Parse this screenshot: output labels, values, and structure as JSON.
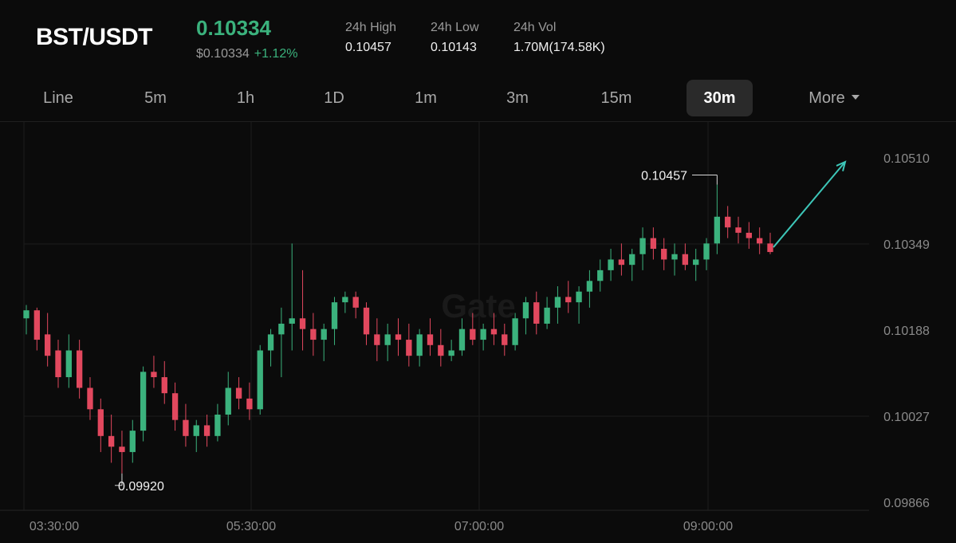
{
  "header": {
    "pair": "BST/USDT",
    "price": "0.10334",
    "usd_price": "$0.10334",
    "change": "+1.12%",
    "stats": [
      {
        "label": "24h High",
        "value": "0.10457"
      },
      {
        "label": "24h Low",
        "value": "0.10143"
      },
      {
        "label": "24h Vol",
        "value": "1.70M(174.58K)"
      }
    ]
  },
  "tabs": [
    "Line",
    "5m",
    "1h",
    "1D",
    "1m",
    "3m",
    "15m",
    "30m",
    "More"
  ],
  "active_tab": "30m",
  "watermark": "Gate",
  "colors": {
    "up": "#3bb27d",
    "down": "#e2485e",
    "text": "#e8e8e8",
    "muted": "#8a8a8a",
    "arrow": "#3dc6b8"
  },
  "chart_data": {
    "type": "candlestick",
    "y_ticks": [
      "0.10510",
      "0.10349",
      "0.10188",
      "0.10027",
      "0.09866"
    ],
    "ylim": [
      0.09866,
      0.1051
    ],
    "x_ticks": [
      "03:30:00",
      "05:30:00",
      "07:00:00",
      "09:00:00"
    ],
    "annotations": {
      "high": "0.10457",
      "low": "0.09920"
    },
    "trend": [
      {
        "o": 0.1021,
        "h": 0.10235,
        "l": 0.1018,
        "c": 0.10225
      },
      {
        "o": 0.10225,
        "h": 0.1023,
        "l": 0.1015,
        "c": 0.1017
      },
      {
        "o": 0.1018,
        "h": 0.1022,
        "l": 0.1012,
        "c": 0.1014
      },
      {
        "o": 0.1015,
        "h": 0.1017,
        "l": 0.1008,
        "c": 0.101
      },
      {
        "o": 0.101,
        "h": 0.1018,
        "l": 0.1008,
        "c": 0.1015
      },
      {
        "o": 0.1015,
        "h": 0.1017,
        "l": 0.1006,
        "c": 0.1008
      },
      {
        "o": 0.1008,
        "h": 0.101,
        "l": 0.1002,
        "c": 0.1004
      },
      {
        "o": 0.1004,
        "h": 0.1006,
        "l": 0.0996,
        "c": 0.0999
      },
      {
        "o": 0.0999,
        "h": 0.1003,
        "l": 0.0994,
        "c": 0.0997
      },
      {
        "o": 0.0997,
        "h": 0.1,
        "l": 0.0992,
        "c": 0.0996
      },
      {
        "o": 0.0996,
        "h": 0.1002,
        "l": 0.0994,
        "c": 0.1
      },
      {
        "o": 0.1,
        "h": 0.1012,
        "l": 0.0998,
        "c": 0.1011
      },
      {
        "o": 0.1011,
        "h": 0.1014,
        "l": 0.1008,
        "c": 0.101
      },
      {
        "o": 0.101,
        "h": 0.1013,
        "l": 0.1005,
        "c": 0.1007
      },
      {
        "o": 0.1007,
        "h": 0.1009,
        "l": 0.1,
        "c": 0.1002
      },
      {
        "o": 0.1002,
        "h": 0.1005,
        "l": 0.0997,
        "c": 0.0999
      },
      {
        "o": 0.0999,
        "h": 0.1002,
        "l": 0.0996,
        "c": 0.1001
      },
      {
        "o": 0.1001,
        "h": 0.1003,
        "l": 0.0997,
        "c": 0.0999
      },
      {
        "o": 0.0999,
        "h": 0.1005,
        "l": 0.0998,
        "c": 0.1003
      },
      {
        "o": 0.1003,
        "h": 0.1011,
        "l": 0.1001,
        "c": 0.1008
      },
      {
        "o": 0.1008,
        "h": 0.101,
        "l": 0.1004,
        "c": 0.1006
      },
      {
        "o": 0.1006,
        "h": 0.1009,
        "l": 0.1002,
        "c": 0.1004
      },
      {
        "o": 0.1004,
        "h": 0.1016,
        "l": 0.1003,
        "c": 0.1015
      },
      {
        "o": 0.1015,
        "h": 0.1019,
        "l": 0.1012,
        "c": 0.1018
      },
      {
        "o": 0.1018,
        "h": 0.1023,
        "l": 0.101,
        "c": 0.102
      },
      {
        "o": 0.102,
        "h": 0.1035,
        "l": 0.1015,
        "c": 0.1021
      },
      {
        "o": 0.1021,
        "h": 0.103,
        "l": 0.1015,
        "c": 0.1019
      },
      {
        "o": 0.1019,
        "h": 0.1022,
        "l": 0.1014,
        "c": 0.1017
      },
      {
        "o": 0.1017,
        "h": 0.102,
        "l": 0.1013,
        "c": 0.1019
      },
      {
        "o": 0.1019,
        "h": 0.1025,
        "l": 0.1016,
        "c": 0.1024
      },
      {
        "o": 0.1024,
        "h": 0.1026,
        "l": 0.1022,
        "c": 0.1025
      },
      {
        "o": 0.1025,
        "h": 0.1026,
        "l": 0.1021,
        "c": 0.1023
      },
      {
        "o": 0.1023,
        "h": 0.1024,
        "l": 0.1016,
        "c": 0.1018
      },
      {
        "o": 0.1018,
        "h": 0.1021,
        "l": 0.1013,
        "c": 0.1016
      },
      {
        "o": 0.1016,
        "h": 0.102,
        "l": 0.1013,
        "c": 0.1018
      },
      {
        "o": 0.1018,
        "h": 0.1021,
        "l": 0.1014,
        "c": 0.1017
      },
      {
        "o": 0.1017,
        "h": 0.102,
        "l": 0.1012,
        "c": 0.1014
      },
      {
        "o": 0.1014,
        "h": 0.1019,
        "l": 0.1012,
        "c": 0.1018
      },
      {
        "o": 0.1018,
        "h": 0.1021,
        "l": 0.1014,
        "c": 0.1016
      },
      {
        "o": 0.1016,
        "h": 0.1019,
        "l": 0.1012,
        "c": 0.1014
      },
      {
        "o": 0.1014,
        "h": 0.1017,
        "l": 0.1013,
        "c": 0.1015
      },
      {
        "o": 0.1015,
        "h": 0.1021,
        "l": 0.1014,
        "c": 0.1019
      },
      {
        "o": 0.1019,
        "h": 0.1022,
        "l": 0.1016,
        "c": 0.1017
      },
      {
        "o": 0.1017,
        "h": 0.102,
        "l": 0.1015,
        "c": 0.1019
      },
      {
        "o": 0.1019,
        "h": 0.1022,
        "l": 0.1016,
        "c": 0.1018
      },
      {
        "o": 0.1018,
        "h": 0.102,
        "l": 0.1014,
        "c": 0.1016
      },
      {
        "o": 0.1016,
        "h": 0.1022,
        "l": 0.1015,
        "c": 0.1021
      },
      {
        "o": 0.1021,
        "h": 0.1025,
        "l": 0.1018,
        "c": 0.1024
      },
      {
        "o": 0.1024,
        "h": 0.1026,
        "l": 0.1018,
        "c": 0.102
      },
      {
        "o": 0.102,
        "h": 0.1025,
        "l": 0.1019,
        "c": 0.1023
      },
      {
        "o": 0.1023,
        "h": 0.1027,
        "l": 0.102,
        "c": 0.1025
      },
      {
        "o": 0.1025,
        "h": 0.1028,
        "l": 0.1022,
        "c": 0.1024
      },
      {
        "o": 0.1024,
        "h": 0.1027,
        "l": 0.102,
        "c": 0.1026
      },
      {
        "o": 0.1026,
        "h": 0.103,
        "l": 0.1023,
        "c": 0.1028
      },
      {
        "o": 0.1028,
        "h": 0.1032,
        "l": 0.1026,
        "c": 0.103
      },
      {
        "o": 0.103,
        "h": 0.1034,
        "l": 0.1028,
        "c": 0.1032
      },
      {
        "o": 0.1032,
        "h": 0.1035,
        "l": 0.1029,
        "c": 0.1031
      },
      {
        "o": 0.1031,
        "h": 0.1034,
        "l": 0.1028,
        "c": 0.1033
      },
      {
        "o": 0.1033,
        "h": 0.1038,
        "l": 0.103,
        "c": 0.1036
      },
      {
        "o": 0.1036,
        "h": 0.1038,
        "l": 0.1032,
        "c": 0.1034
      },
      {
        "o": 0.1034,
        "h": 0.1036,
        "l": 0.103,
        "c": 0.1032
      },
      {
        "o": 0.1032,
        "h": 0.1035,
        "l": 0.1029,
        "c": 0.1033
      },
      {
        "o": 0.1033,
        "h": 0.1035,
        "l": 0.103,
        "c": 0.1031
      },
      {
        "o": 0.1031,
        "h": 0.1034,
        "l": 0.1028,
        "c": 0.1032
      },
      {
        "o": 0.1032,
        "h": 0.1036,
        "l": 0.103,
        "c": 0.1035
      },
      {
        "o": 0.1035,
        "h": 0.1046,
        "l": 0.1033,
        "c": 0.104
      },
      {
        "o": 0.104,
        "h": 0.1042,
        "l": 0.1036,
        "c": 0.1038
      },
      {
        "o": 0.1038,
        "h": 0.104,
        "l": 0.1035,
        "c": 0.1037
      },
      {
        "o": 0.1037,
        "h": 0.1039,
        "l": 0.1034,
        "c": 0.1036
      },
      {
        "o": 0.1036,
        "h": 0.1038,
        "l": 0.1033,
        "c": 0.1035
      },
      {
        "o": 0.1035,
        "h": 0.1037,
        "l": 0.1033,
        "c": 0.10334
      }
    ]
  }
}
